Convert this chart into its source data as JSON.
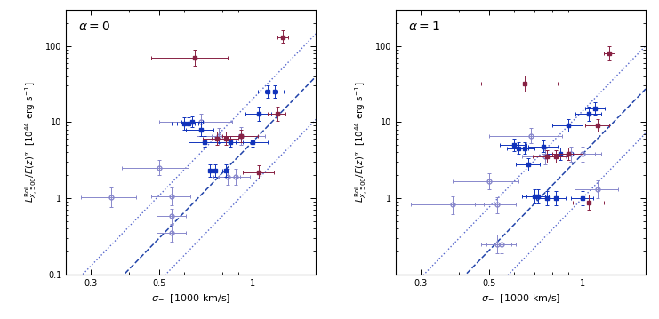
{
  "xlim": [
    0.25,
    1.6
  ],
  "ylim": [
    0.13,
    300
  ],
  "open_circles_alpha0": {
    "x": [
      0.35,
      0.5,
      0.55,
      0.55,
      0.55,
      0.68,
      0.78,
      0.83,
      0.88,
      0.92
    ],
    "y": [
      1.02,
      2.5,
      1.05,
      0.58,
      0.35,
      10.0,
      6.5,
      1.9,
      1.9,
      6.5
    ],
    "xerr_lo": [
      0.07,
      0.12,
      0.08,
      0.06,
      0.06,
      0.18,
      0.12,
      0.08,
      0.1,
      0.18
    ],
    "xerr_hi": [
      0.07,
      0.12,
      0.08,
      0.06,
      0.06,
      0.18,
      0.12,
      0.08,
      0.1,
      0.18
    ],
    "yerr_lo": [
      0.25,
      0.5,
      0.25,
      0.12,
      0.08,
      2.0,
      1.2,
      0.4,
      0.4,
      1.5
    ],
    "yerr_hi": [
      0.35,
      0.7,
      0.35,
      0.15,
      0.1,
      3.0,
      1.8,
      0.5,
      0.5,
      2.0
    ]
  },
  "filled_blue_alpha0": {
    "x": [
      0.6,
      0.62,
      0.64,
      0.68,
      0.7,
      0.73,
      0.76,
      0.82,
      0.85,
      1.0,
      1.05,
      1.12,
      1.18
    ],
    "y": [
      9.5,
      9.5,
      10.0,
      8.0,
      5.5,
      2.3,
      2.3,
      2.3,
      5.5,
      5.5,
      13.0,
      25.0,
      25.0
    ],
    "xerr_lo": [
      0.05,
      0.05,
      0.05,
      0.07,
      0.08,
      0.07,
      0.06,
      0.07,
      0.08,
      0.12,
      0.1,
      0.08,
      0.08
    ],
    "xerr_hi": [
      0.05,
      0.05,
      0.05,
      0.07,
      0.08,
      0.07,
      0.06,
      0.07,
      0.08,
      0.12,
      0.1,
      0.08,
      0.08
    ],
    "yerr_lo": [
      1.5,
      1.5,
      1.5,
      1.5,
      0.8,
      0.4,
      0.4,
      0.4,
      0.8,
      0.8,
      2.5,
      4.0,
      4.0
    ],
    "yerr_hi": [
      2.0,
      2.0,
      2.0,
      2.0,
      1.0,
      0.5,
      0.5,
      0.5,
      1.0,
      1.0,
      3.0,
      5.0,
      5.0
    ]
  },
  "filled_red_alpha0": {
    "x": [
      0.65,
      0.77,
      0.82,
      0.92,
      1.05,
      1.2,
      1.25
    ],
    "y": [
      70.0,
      6.0,
      6.0,
      6.5,
      2.2,
      13.0,
      130.0
    ],
    "xerr_lo": [
      0.18,
      0.08,
      0.08,
      0.12,
      0.12,
      0.08,
      0.05
    ],
    "xerr_hi": [
      0.18,
      0.08,
      0.08,
      0.12,
      0.12,
      0.08,
      0.05
    ],
    "yerr_lo": [
      15.0,
      1.0,
      1.0,
      1.0,
      0.4,
      2.5,
      20.0
    ],
    "yerr_hi": [
      20.0,
      1.5,
      1.5,
      1.5,
      0.5,
      3.0,
      30.0
    ]
  },
  "open_circles_alpha1": {
    "x": [
      0.38,
      0.5,
      0.53,
      0.53,
      0.55,
      0.68,
      0.76,
      0.92,
      1.0,
      1.12
    ],
    "y": [
      0.82,
      1.65,
      0.82,
      0.25,
      0.25,
      6.5,
      3.5,
      3.8,
      3.8,
      1.3
    ],
    "xerr_lo": [
      0.1,
      0.12,
      0.08,
      0.06,
      0.06,
      0.18,
      0.12,
      0.18,
      0.15,
      0.18
    ],
    "xerr_hi": [
      0.1,
      0.12,
      0.08,
      0.06,
      0.06,
      0.18,
      0.12,
      0.18,
      0.15,
      0.18
    ],
    "yerr_lo": [
      0.2,
      0.35,
      0.18,
      0.06,
      0.06,
      1.2,
      0.7,
      0.8,
      0.8,
      0.3
    ],
    "yerr_hi": [
      0.25,
      0.5,
      0.22,
      0.08,
      0.08,
      1.8,
      1.0,
      1.0,
      1.0,
      0.4
    ]
  },
  "filled_blue_alpha1": {
    "x": [
      0.6,
      0.62,
      0.65,
      0.67,
      0.7,
      0.72,
      0.75,
      0.77,
      0.82,
      0.85,
      0.9,
      1.0,
      1.05,
      1.1
    ],
    "y": [
      5.0,
      4.5,
      4.5,
      2.8,
      1.05,
      1.05,
      4.8,
      1.0,
      1.0,
      3.8,
      9.0,
      1.0,
      13.0,
      15.0
    ],
    "xerr_lo": [
      0.06,
      0.05,
      0.05,
      0.06,
      0.06,
      0.06,
      0.08,
      0.06,
      0.06,
      0.08,
      0.1,
      0.08,
      0.1,
      0.08
    ],
    "xerr_hi": [
      0.06,
      0.05,
      0.05,
      0.06,
      0.06,
      0.06,
      0.08,
      0.06,
      0.06,
      0.08,
      0.1,
      0.08,
      0.1,
      0.08
    ],
    "yerr_lo": [
      0.8,
      0.7,
      0.7,
      0.5,
      0.2,
      0.2,
      0.8,
      0.2,
      0.2,
      0.6,
      1.5,
      0.2,
      2.5,
      2.5
    ],
    "yerr_hi": [
      1.0,
      0.9,
      0.9,
      0.6,
      0.25,
      0.25,
      1.0,
      0.25,
      0.25,
      0.8,
      2.0,
      0.25,
      3.0,
      3.0
    ]
  },
  "filled_red_alpha1": {
    "x": [
      0.65,
      0.77,
      0.82,
      0.9,
      1.05,
      1.12,
      1.22
    ],
    "y": [
      32.0,
      3.5,
      3.5,
      3.8,
      0.88,
      9.0,
      80.0
    ],
    "xerr_lo": [
      0.18,
      0.08,
      0.08,
      0.1,
      0.12,
      0.1,
      0.05
    ],
    "xerr_hi": [
      0.18,
      0.08,
      0.08,
      0.1,
      0.12,
      0.1,
      0.05
    ],
    "yerr_lo": [
      7.0,
      0.6,
      0.6,
      0.6,
      0.18,
      1.5,
      15.0
    ],
    "yerr_hi": [
      9.0,
      0.8,
      0.8,
      0.8,
      0.22,
      2.0,
      20.0
    ]
  },
  "line_dashed_color": "#2244aa",
  "line_dotted_color": "#5566cc",
  "open_circle_color": "#8888cc",
  "filled_blue_color": "#1133bb",
  "filled_red_color": "#882244",
  "bg_color": "#ffffff",
  "slope0_dashed": 4.2,
  "slope0_int_dashed": 5.5,
  "slope0_int_dot1": 1.5,
  "slope0_int_dot2": 20.0,
  "slope1_dashed": 4.2,
  "slope1_int_dashed": 3.8,
  "slope1_int_dot1": 1.0,
  "slope1_int_dot2": 14.0
}
